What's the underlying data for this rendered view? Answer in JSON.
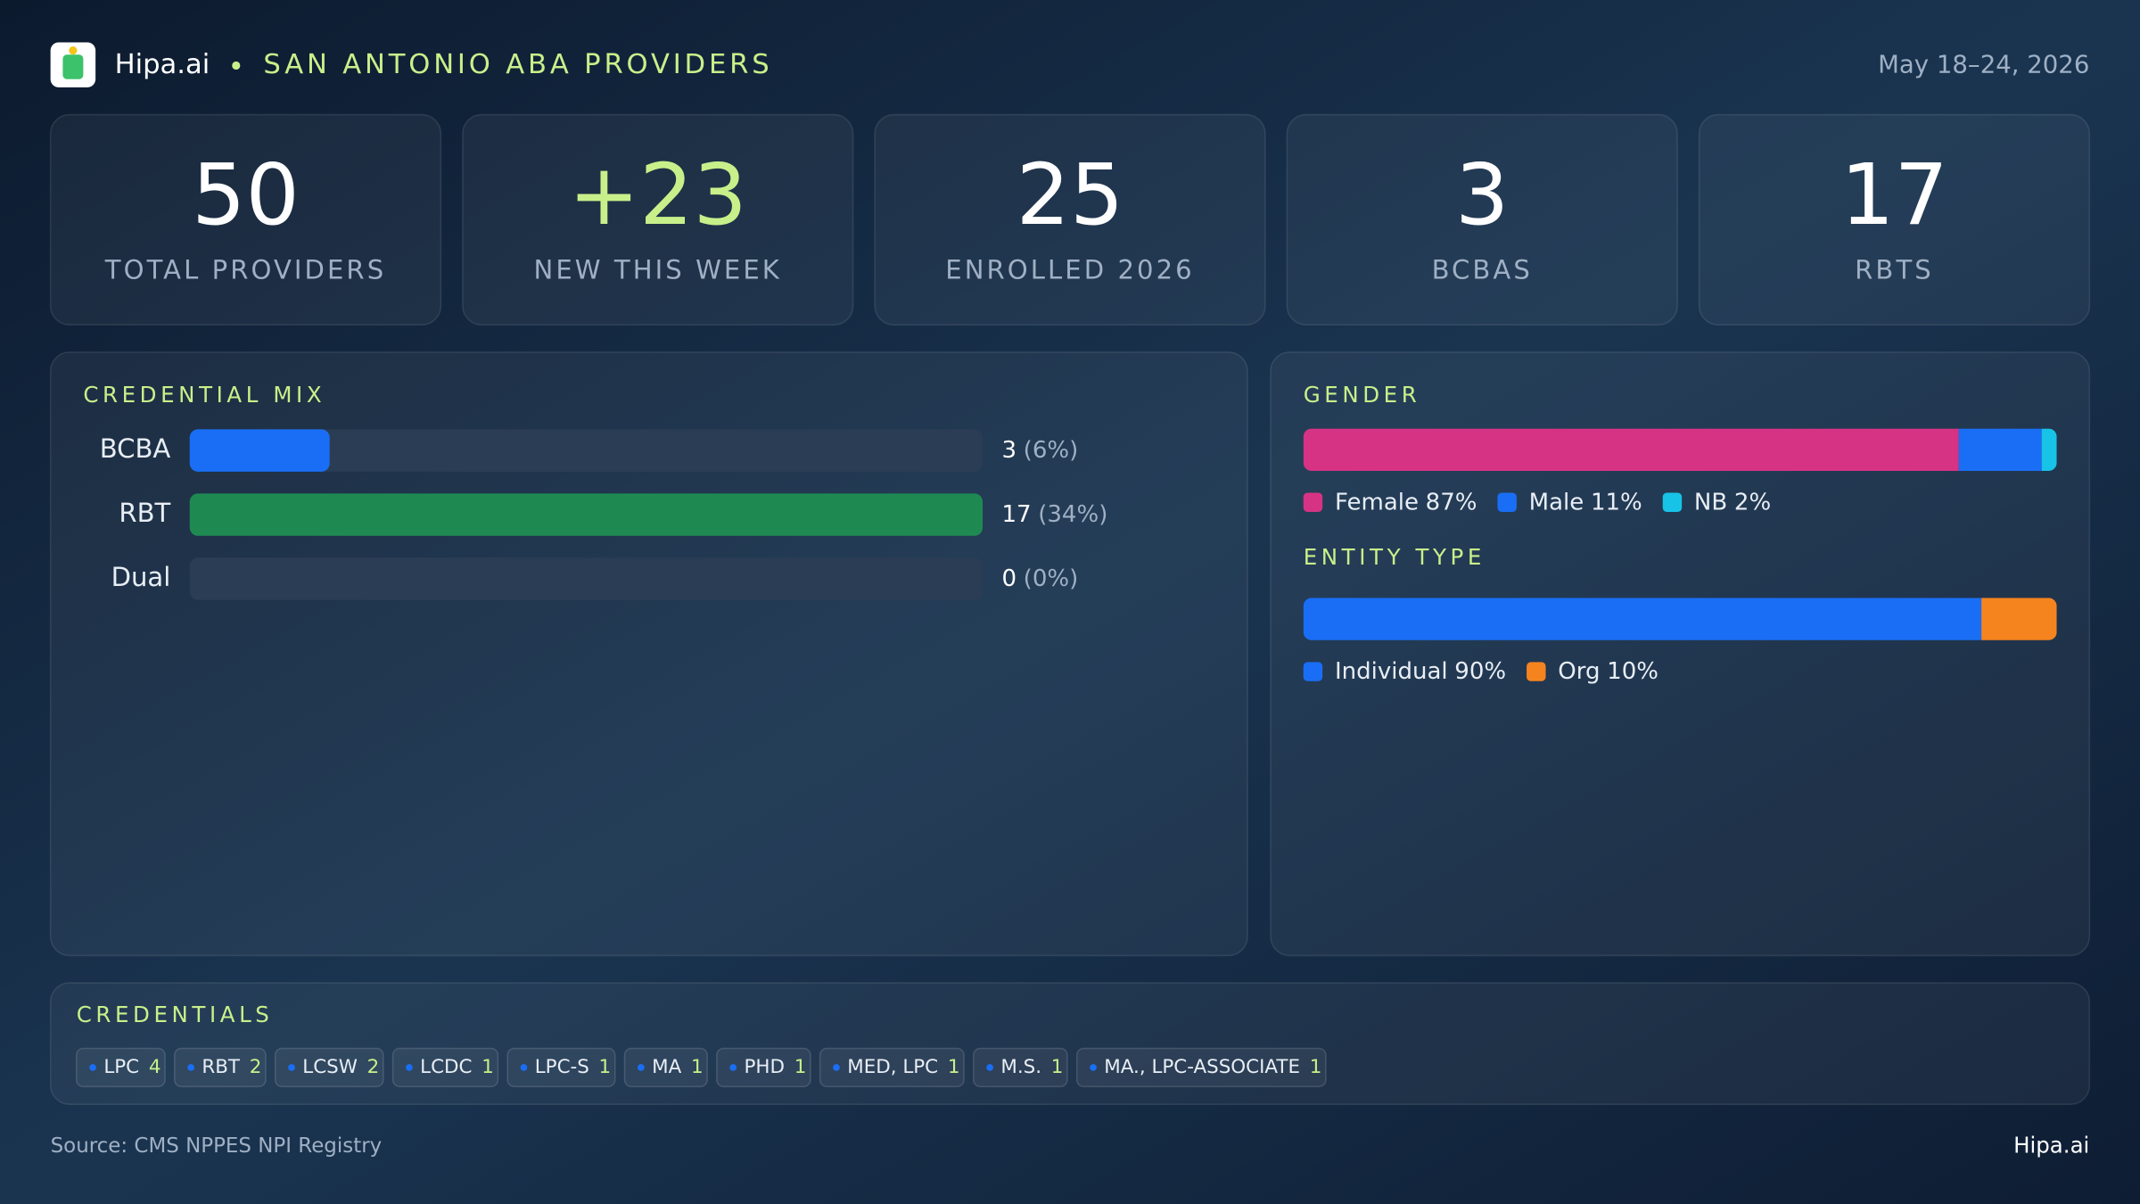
{
  "header": {
    "brand": "Hipa.ai",
    "title": "SAN ANTONIO ABA PROVIDERS",
    "date": "May 18–24, 2026"
  },
  "kpis": [
    {
      "value": "50",
      "label": "TOTAL PROVIDERS"
    },
    {
      "value": "+23",
      "label": "NEW THIS WEEK"
    },
    {
      "value": "25",
      "label": "ENROLLED 2026"
    },
    {
      "value": "3",
      "label": "BCBAS"
    },
    {
      "value": "17",
      "label": "RBTS"
    }
  ],
  "credential_mix": {
    "title": "CREDENTIAL MIX",
    "rows": [
      {
        "name": "BCBA",
        "count": 3,
        "share": "(6%)",
        "color": "#1a6ef5"
      },
      {
        "name": "RBT",
        "count": 17,
        "share": "(34%)",
        "color": "#1e8a52"
      },
      {
        "name": "Dual",
        "count": 0,
        "share": "(0%)",
        "color": "#6b7b8f"
      }
    ]
  },
  "gender": {
    "title": "GENDER",
    "segments": [
      {
        "name": "Female",
        "value": 87,
        "value_label": "87%",
        "color": "#d63384"
      },
      {
        "name": "Male",
        "value": 11,
        "value_label": "11%",
        "color": "#1a6ef5"
      },
      {
        "name": "NB",
        "value": 2,
        "value_label": "2%",
        "color": "#17c3e6"
      }
    ]
  },
  "entity_type": {
    "title": "ENTITY TYPE",
    "segments": [
      {
        "name": "Individual",
        "value": 90,
        "value_label": "90%",
        "color": "#1a6ef5"
      },
      {
        "name": "Org",
        "value": 10,
        "value_label": "10%",
        "color": "#f5841f"
      }
    ]
  },
  "credentials": {
    "title": "CREDENTIALS",
    "tags": [
      {
        "name": "LPC",
        "count": 4
      },
      {
        "name": "RBT",
        "count": 2
      },
      {
        "name": "LCSW",
        "count": 2
      },
      {
        "name": "LCDC",
        "count": 1
      },
      {
        "name": "LPC-S",
        "count": 1
      },
      {
        "name": "MA",
        "count": 1
      },
      {
        "name": "PHD",
        "count": 1
      },
      {
        "name": "MED, LPC",
        "count": 1
      },
      {
        "name": "M.S.",
        "count": 1
      },
      {
        "name": "MA., LPC-ASSOCIATE",
        "count": 1
      }
    ]
  },
  "footer": {
    "source": "Source: CMS NPPES NPI Registry",
    "brand": "Hipa.ai"
  }
}
